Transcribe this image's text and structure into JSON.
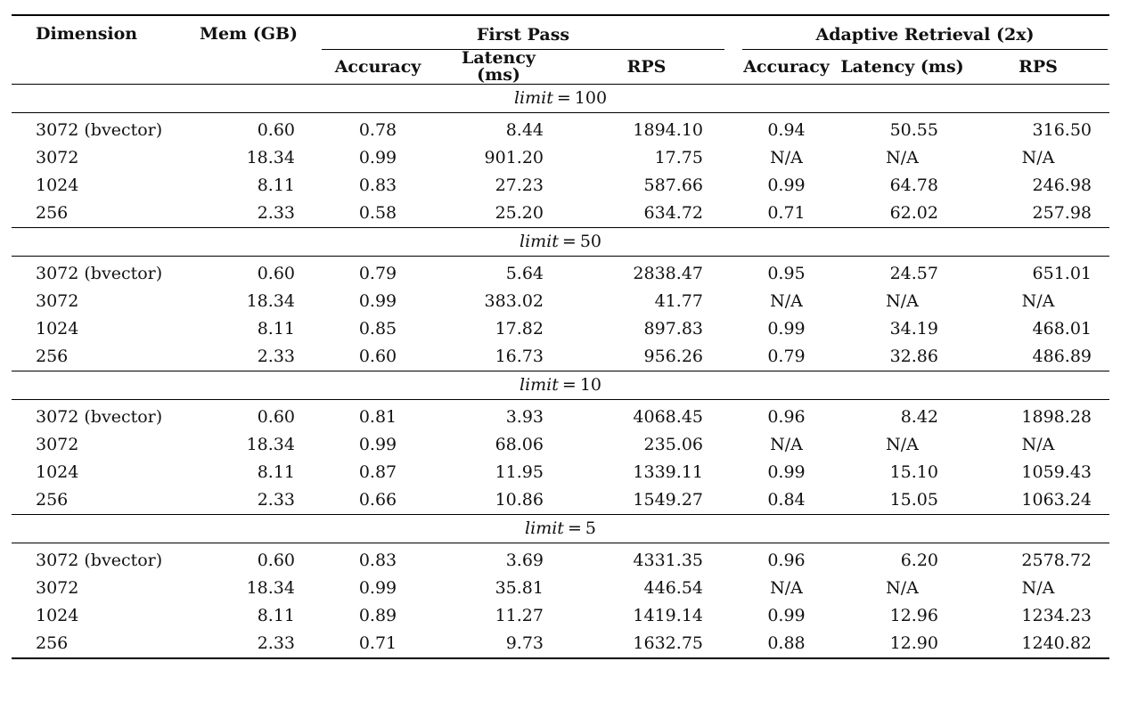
{
  "table": {
    "headers": {
      "dimension": "Dimension",
      "mem": "Mem (GB)",
      "group_first": "First Pass",
      "group_adaptive": "Adaptive Retrieval (2x)",
      "sub": [
        "Accuracy",
        "Latency (ms)",
        "RPS",
        "Accuracy",
        "Latency (ms)",
        "RPS"
      ]
    },
    "na_text": "N/A",
    "sections": [
      {
        "limit_var": "limit",
        "limit_eq": "=",
        "limit_value": "100",
        "rows": [
          [
            "3072 (bvector)",
            "0.60",
            "0.78",
            "8.44",
            "1894.10",
            "0.94",
            "50.55",
            "316.50"
          ],
          [
            "3072",
            "18.34",
            "0.99",
            "901.20",
            "17.75",
            "N/A",
            "N/A",
            "N/A"
          ],
          [
            "1024",
            "8.11",
            "0.83",
            "27.23",
            "587.66",
            "0.99",
            "64.78",
            "246.98"
          ],
          [
            "256",
            "2.33",
            "0.58",
            "25.20",
            "634.72",
            "0.71",
            "62.02",
            "257.98"
          ]
        ]
      },
      {
        "limit_var": "limit",
        "limit_eq": "=",
        "limit_value": "50",
        "rows": [
          [
            "3072 (bvector)",
            "0.60",
            "0.79",
            "5.64",
            "2838.47",
            "0.95",
            "24.57",
            "651.01"
          ],
          [
            "3072",
            "18.34",
            "0.99",
            "383.02",
            "41.77",
            "N/A",
            "N/A",
            "N/A"
          ],
          [
            "1024",
            "8.11",
            "0.85",
            "17.82",
            "897.83",
            "0.99",
            "34.19",
            "468.01"
          ],
          [
            "256",
            "2.33",
            "0.60",
            "16.73",
            "956.26",
            "0.79",
            "32.86",
            "486.89"
          ]
        ]
      },
      {
        "limit_var": "limit",
        "limit_eq": "=",
        "limit_value": "10",
        "rows": [
          [
            "3072 (bvector)",
            "0.60",
            "0.81",
            "3.93",
            "4068.45",
            "0.96",
            "8.42",
            "1898.28"
          ],
          [
            "3072",
            "18.34",
            "0.99",
            "68.06",
            "235.06",
            "N/A",
            "N/A",
            "N/A"
          ],
          [
            "1024",
            "8.11",
            "0.87",
            "11.95",
            "1339.11",
            "0.99",
            "15.10",
            "1059.43"
          ],
          [
            "256",
            "2.33",
            "0.66",
            "10.86",
            "1549.27",
            "0.84",
            "15.05",
            "1063.24"
          ]
        ]
      },
      {
        "limit_var": "limit",
        "limit_eq": "=",
        "limit_value": "5",
        "rows": [
          [
            "3072 (bvector)",
            "0.60",
            "0.83",
            "3.69",
            "4331.35",
            "0.96",
            "6.20",
            "2578.72"
          ],
          [
            "3072",
            "18.34",
            "0.99",
            "35.81",
            "446.54",
            "N/A",
            "N/A",
            "N/A"
          ],
          [
            "1024",
            "8.11",
            "0.89",
            "11.27",
            "1419.14",
            "0.99",
            "12.96",
            "1234.23"
          ],
          [
            "256",
            "2.33",
            "0.71",
            "9.73",
            "1632.75",
            "0.88",
            "12.90",
            "1240.82"
          ]
        ]
      }
    ]
  }
}
